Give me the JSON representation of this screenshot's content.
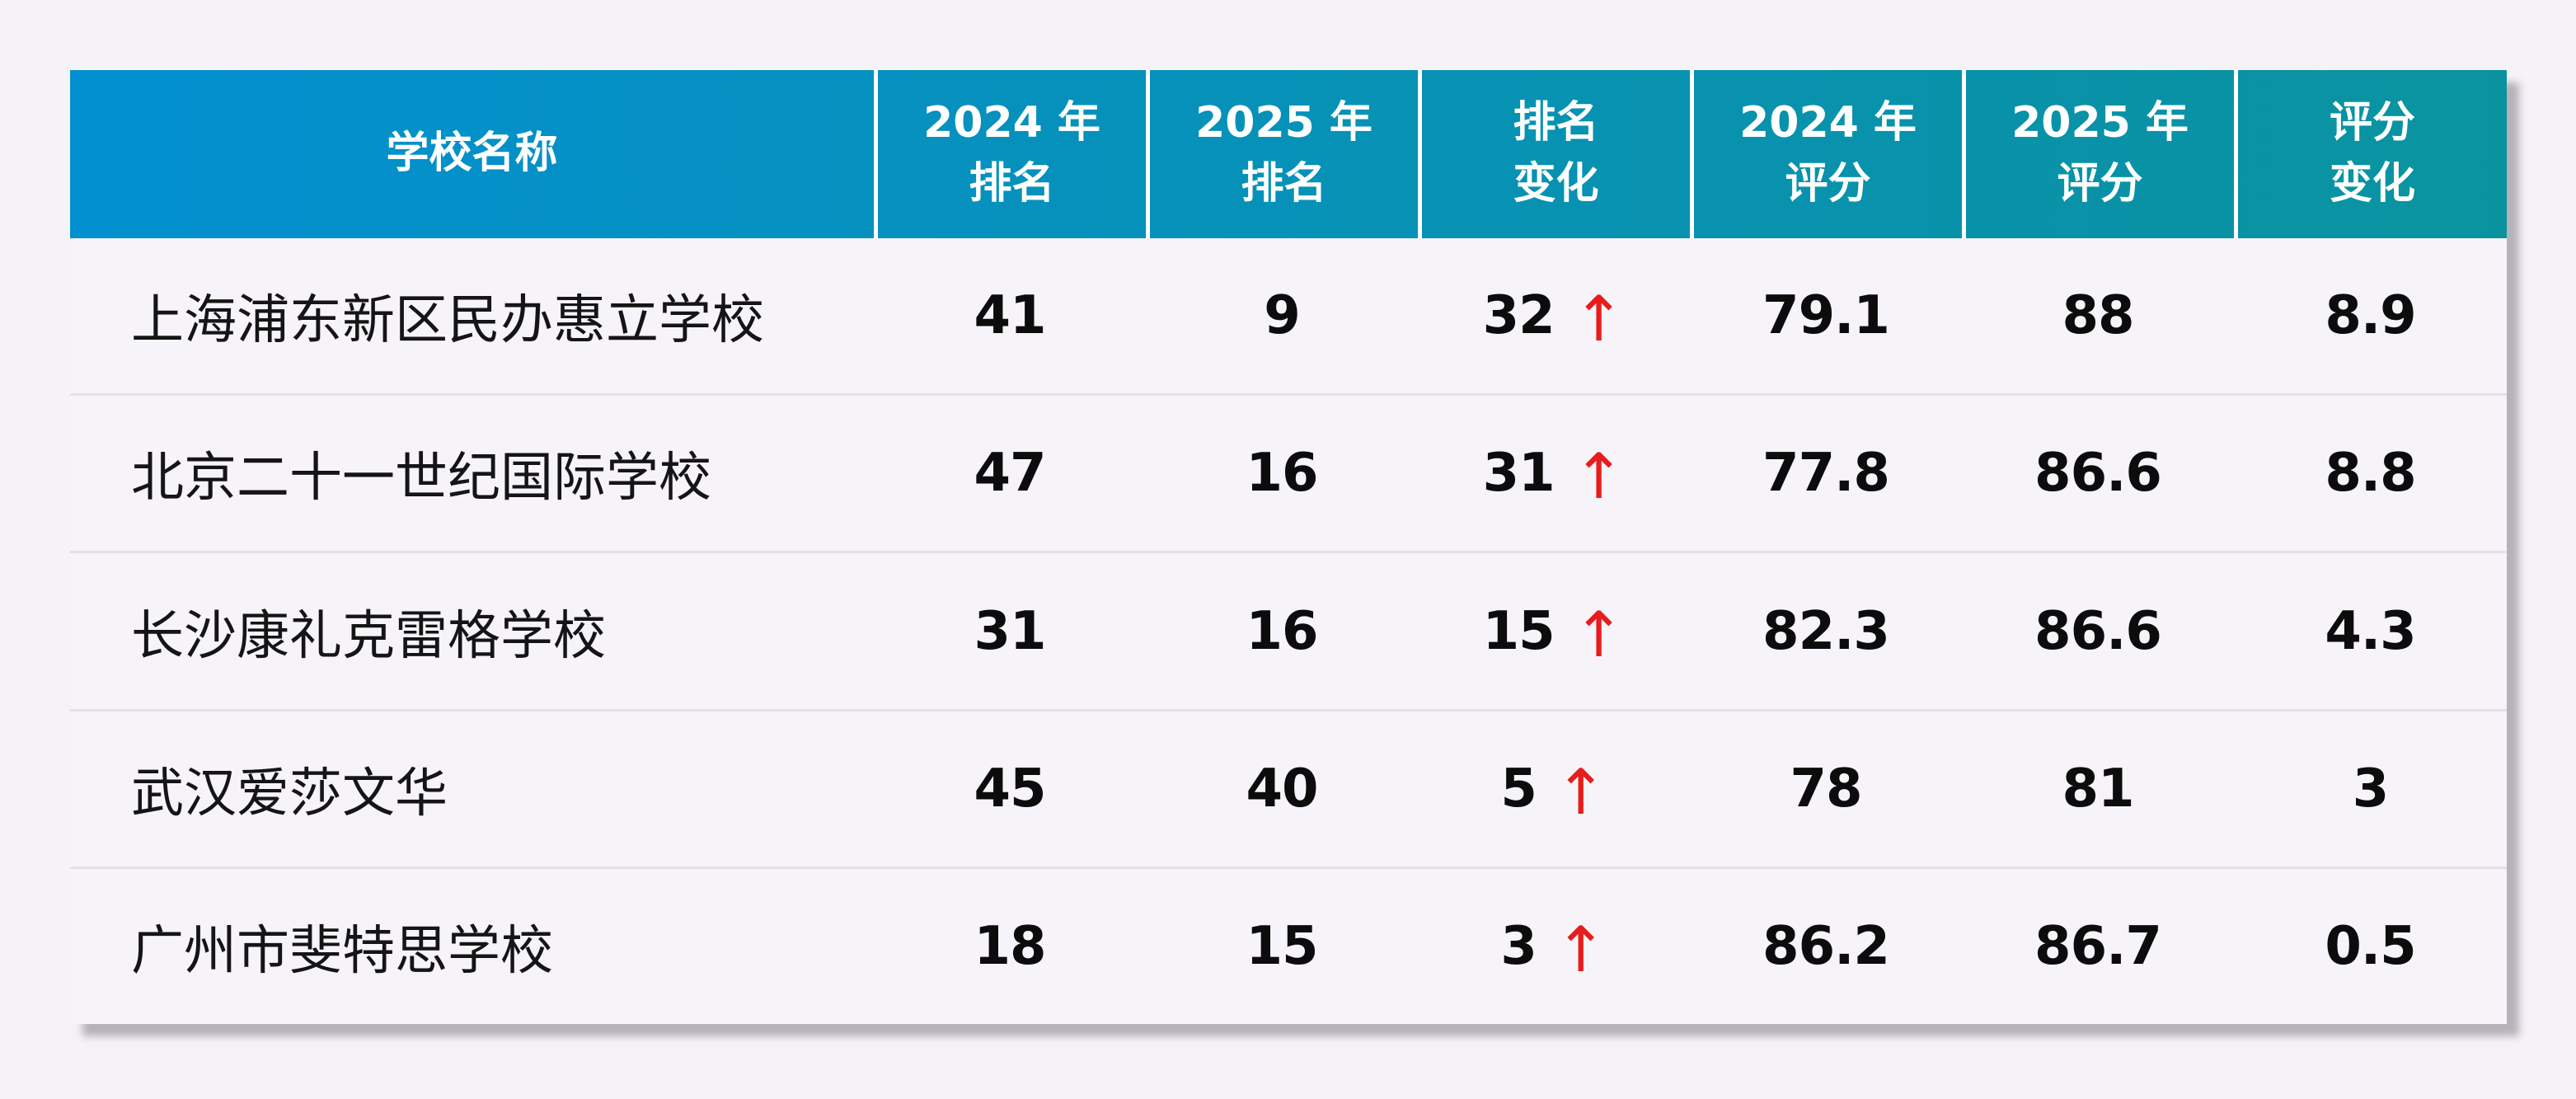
{
  "page": {
    "background_color": "#f6f3f8"
  },
  "table": {
    "style": {
      "header_gradient_left": "#0390d0",
      "header_gradient_right": "#0a939f",
      "header_text_color": "#ffffff",
      "row_background": "#f7f4f9",
      "row_separator_color": "#e3e1e6",
      "number_text_color": "#0c0c0c",
      "arrow_color": "#e81c1c"
    },
    "columns": [
      {
        "label": "学校名称"
      },
      {
        "label": "2024 年\n排名"
      },
      {
        "label": "2025 年\n排名"
      },
      {
        "label": "排名\n变化"
      },
      {
        "label": "2024 年\n评分"
      },
      {
        "label": "2025 年\n评分"
      },
      {
        "label": "评分\n变化"
      }
    ],
    "rows": [
      {
        "name": "上海浦东新区民办惠立学校",
        "rank_2024": "41",
        "rank_2025": "9",
        "rank_change": "32",
        "score_2024": "79.1",
        "score_2025": "88",
        "score_change": "8.9"
      },
      {
        "name": "北京二十一世纪国际学校",
        "rank_2024": "47",
        "rank_2025": "16",
        "rank_change": "31",
        "score_2024": "77.8",
        "score_2025": "86.6",
        "score_change": "8.8"
      },
      {
        "name": "长沙康礼克雷格学校",
        "rank_2024": "31",
        "rank_2025": "16",
        "rank_change": "15",
        "score_2024": "82.3",
        "score_2025": "86.6",
        "score_change": "4.3"
      },
      {
        "name": "武汉爱莎文华",
        "rank_2024": "45",
        "rank_2025": "40",
        "rank_change": "5",
        "score_2024": "78",
        "score_2025": "81",
        "score_change": "3"
      },
      {
        "name": "广州市斐特思学校",
        "rank_2024": "18",
        "rank_2025": "15",
        "rank_change": "3",
        "score_2024": "86.2",
        "score_2025": "86.7",
        "score_change": "0.5"
      }
    ]
  },
  "icons": {
    "up_arrow": "↑"
  },
  "chart_data": {
    "type": "table",
    "columns": [
      "学校名称",
      "2024 年排名",
      "2025 年排名",
      "排名变化",
      "2024 年评分",
      "2025 年评分",
      "评分变化"
    ],
    "rows": [
      [
        "上海浦东新区民办惠立学校",
        41,
        9,
        "32 ↑",
        79.1,
        88,
        8.9
      ],
      [
        "北京二十一世纪国际学校",
        47,
        16,
        "31 ↑",
        77.8,
        86.6,
        8.8
      ],
      [
        "长沙康礼克雷格学校",
        31,
        16,
        "15 ↑",
        82.3,
        86.6,
        4.3
      ],
      [
        "武汉爱莎文华",
        45,
        40,
        "5 ↑",
        78,
        81,
        3
      ],
      [
        "广州市斐特思学校",
        18,
        15,
        "3 ↑",
        86.2,
        86.7,
        0.5
      ]
    ],
    "notes": "排名变化 column values all show red upward arrows (rank improvement)"
  }
}
